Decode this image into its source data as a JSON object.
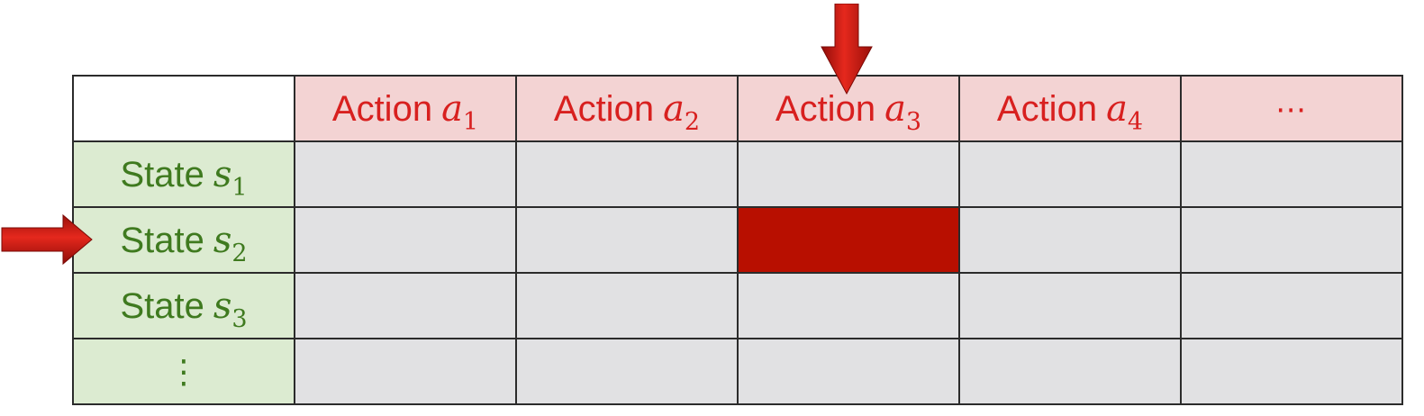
{
  "table": {
    "action_prefix": "Action",
    "actions": [
      {
        "var": "a",
        "sub": "1"
      },
      {
        "var": "a",
        "sub": "2"
      },
      {
        "var": "a",
        "sub": "3"
      },
      {
        "var": "a",
        "sub": "4"
      }
    ],
    "action_more": "⋯",
    "state_prefix": "State",
    "states": [
      {
        "var": "s",
        "sub": "1"
      },
      {
        "var": "s",
        "sub": "2"
      },
      {
        "var": "s",
        "sub": "3"
      }
    ],
    "state_more": "⋮",
    "selected": {
      "state": "s2",
      "action": "a3"
    }
  },
  "colors": {
    "action_text": "#d8201f",
    "action_bg": "#f3d3d3",
    "state_text": "#3f7a1f",
    "state_bg": "#dcebd1",
    "cell_bg": "#e1e1e3",
    "selected_cell": "#b80f00",
    "arrow": "#cc1a12"
  },
  "pointers": [
    {
      "icon": "down-arrow-icon",
      "points_to": "action a3"
    },
    {
      "icon": "right-arrow-icon",
      "points_to": "state s2"
    }
  ]
}
